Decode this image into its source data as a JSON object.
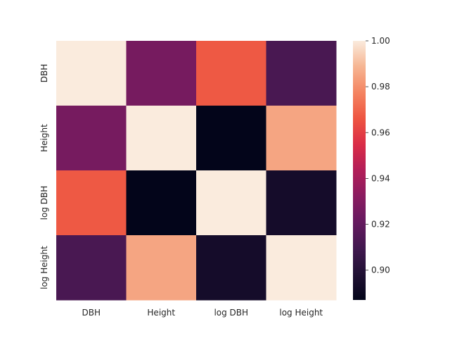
{
  "chart_data": {
    "type": "heatmap",
    "title": "",
    "xlabel": "",
    "ylabel": "",
    "x_categories": [
      "DBH",
      "Height",
      "log DBH",
      "log Height"
    ],
    "y_categories": [
      "DBH",
      "Height",
      "log DBH",
      "log Height"
    ],
    "values": [
      [
        1.0,
        0.926,
        0.967,
        0.912
      ],
      [
        0.926,
        1.0,
        0.887,
        0.985
      ],
      [
        0.967,
        0.887,
        1.0,
        0.894
      ],
      [
        0.912,
        0.985,
        0.894,
        1.0
      ]
    ],
    "colormap": "rocket",
    "vmin": 0.887,
    "vmax": 1.0,
    "colorbar": {
      "ticks": [
        0.9,
        0.92,
        0.94,
        0.96,
        0.98,
        1.0
      ],
      "tick_labels": [
        "0.90",
        "0.92",
        "0.94",
        "0.96",
        "0.98",
        "1.00"
      ]
    },
    "grid": false
  }
}
